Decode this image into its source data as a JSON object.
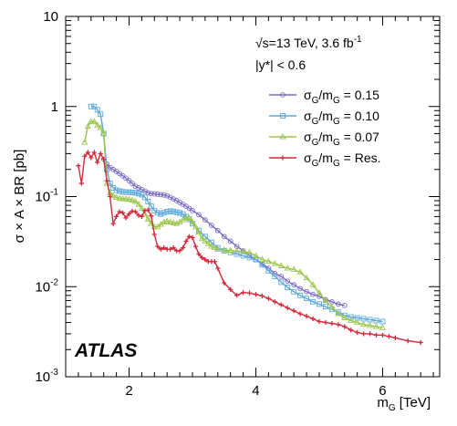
{
  "chart_data": {
    "type": "line",
    "xlabel": "m",
    "xlabel_sub": "G",
    "xlabel_unit": " [TeV]",
    "ylabel": "σ × A × BR [pb]",
    "xlim": [
      1.0,
      6.9
    ],
    "ylim": [
      0.001,
      10
    ],
    "yscale": "log",
    "x_ticks": [
      2,
      4,
      6
    ],
    "x_tick_labels": [
      "2",
      "4",
      "6"
    ],
    "y_ticks": [
      0.001,
      0.01,
      0.1,
      1,
      10
    ],
    "y_tick_labels": [
      {
        "base": "10",
        "exp": "-3"
      },
      {
        "base": "10",
        "exp": "-2"
      },
      {
        "base": "10",
        "exp": "-1"
      },
      {
        "base": "1",
        "exp": ""
      },
      {
        "base": "10",
        "exp": ""
      }
    ],
    "grid": false,
    "legend_position": "top-right",
    "info": {
      "line1_prefix": "√s=13 TeV, 3.6 fb",
      "line1_sup": "-1",
      "line2": "|y*| < 0.6"
    },
    "brand": "ATLAS",
    "series": [
      {
        "name": "σG/mG = 0.15",
        "legend_main": "σ",
        "legend_sub1": "G",
        "legend_mid": "/m",
        "legend_sub2": "G",
        "legend_tail": " = 0.15",
        "color": "#7b68c4",
        "marker": "circle",
        "x": [
          1.6,
          1.65,
          1.7,
          1.75,
          1.8,
          1.85,
          1.9,
          1.95,
          2.0,
          2.05,
          2.1,
          2.15,
          2.2,
          2.25,
          2.3,
          2.35,
          2.4,
          2.45,
          2.5,
          2.55,
          2.6,
          2.65,
          2.7,
          2.75,
          2.8,
          2.85,
          2.9,
          2.95,
          3.0,
          3.1,
          3.2,
          3.3,
          3.4,
          3.5,
          3.6,
          3.7,
          3.8,
          3.9,
          4.0,
          4.1,
          4.2,
          4.3,
          4.4,
          4.5,
          4.6,
          4.7,
          4.8,
          4.9,
          5.0,
          5.1,
          5.2,
          5.3,
          5.4
        ],
        "values": [
          0.26,
          0.23,
          0.21,
          0.2,
          0.19,
          0.18,
          0.17,
          0.16,
          0.15,
          0.14,
          0.13,
          0.125,
          0.12,
          0.115,
          0.11,
          0.108,
          0.107,
          0.106,
          0.105,
          0.104,
          0.102,
          0.098,
          0.094,
          0.09,
          0.086,
          0.082,
          0.078,
          0.074,
          0.07,
          0.063,
          0.055,
          0.048,
          0.042,
          0.036,
          0.032,
          0.028,
          0.025,
          0.022,
          0.02,
          0.018,
          0.016,
          0.014,
          0.013,
          0.0115,
          0.0105,
          0.0095,
          0.0088,
          0.0082,
          0.0078,
          0.0072,
          0.0068,
          0.0064,
          0.0062
        ]
      },
      {
        "name": "σG/mG = 0.10",
        "legend_main": "σ",
        "legend_sub1": "G",
        "legend_mid": "/m",
        "legend_sub2": "G",
        "legend_tail": " = 0.10",
        "color": "#5aa7d9",
        "marker": "square",
        "x": [
          1.4,
          1.45,
          1.5,
          1.55,
          1.6,
          1.65,
          1.7,
          1.75,
          1.8,
          1.85,
          1.9,
          1.95,
          2.0,
          2.05,
          2.1,
          2.15,
          2.2,
          2.25,
          2.3,
          2.35,
          2.4,
          2.45,
          2.5,
          2.55,
          2.6,
          2.65,
          2.7,
          2.75,
          2.8,
          2.85,
          2.9,
          2.95,
          3.0,
          3.1,
          3.2,
          3.3,
          3.4,
          3.5,
          3.6,
          3.7,
          3.8,
          3.9,
          4.0,
          4.1,
          4.2,
          4.3,
          4.4,
          4.5,
          4.6,
          4.7,
          4.8,
          4.9,
          5.0,
          5.1,
          5.2,
          5.3,
          5.4,
          5.5,
          5.6,
          5.7,
          5.8,
          5.9,
          6.0
        ],
        "values": [
          1.0,
          1.0,
          0.92,
          0.82,
          0.5,
          0.2,
          0.14,
          0.125,
          0.118,
          0.115,
          0.113,
          0.112,
          0.112,
          0.111,
          0.11,
          0.108,
          0.105,
          0.098,
          0.088,
          0.078,
          0.07,
          0.066,
          0.064,
          0.066,
          0.068,
          0.069,
          0.068,
          0.067,
          0.066,
          0.064,
          0.06,
          0.056,
          0.05,
          0.042,
          0.036,
          0.031,
          0.027,
          0.025,
          0.024,
          0.023,
          0.022,
          0.021,
          0.02,
          0.0175,
          0.015,
          0.013,
          0.0112,
          0.0098,
          0.0088,
          0.008,
          0.0074,
          0.0068,
          0.0064,
          0.006,
          0.0056,
          0.0052,
          0.0048,
          0.0046,
          0.0045,
          0.0044,
          0.0043,
          0.0042,
          0.0041
        ]
      },
      {
        "name": "σG/mG = 0.07",
        "legend_main": "σ",
        "legend_sub1": "G",
        "legend_mid": "/m",
        "legend_sub2": "G",
        "legend_tail": " = 0.07",
        "color": "#9ac64a",
        "marker": "triangle",
        "x": [
          1.3,
          1.35,
          1.4,
          1.45,
          1.5,
          1.55,
          1.6,
          1.65,
          1.7,
          1.75,
          1.8,
          1.85,
          1.9,
          1.95,
          2.0,
          2.05,
          2.1,
          2.15,
          2.2,
          2.25,
          2.3,
          2.35,
          2.4,
          2.45,
          2.5,
          2.55,
          2.6,
          2.65,
          2.7,
          2.75,
          2.8,
          2.85,
          2.9,
          2.95,
          3.0,
          3.05,
          3.1,
          3.15,
          3.2,
          3.25,
          3.3,
          3.35,
          3.4,
          3.5,
          3.6,
          3.7,
          3.8,
          3.9,
          4.0,
          4.1,
          4.2,
          4.3,
          4.4,
          4.5,
          4.6,
          4.7,
          4.8,
          4.9,
          5.0,
          5.1,
          5.2,
          5.3,
          5.4,
          5.5,
          5.6,
          5.7,
          5.8,
          5.9,
          6.0
        ],
        "values": [
          0.4,
          0.6,
          0.68,
          0.68,
          0.62,
          0.58,
          0.5,
          0.14,
          0.11,
          0.102,
          0.098,
          0.095,
          0.094,
          0.094,
          0.093,
          0.091,
          0.088,
          0.082,
          0.074,
          0.064,
          0.056,
          0.05,
          0.046,
          0.046,
          0.049,
          0.052,
          0.053,
          0.052,
          0.051,
          0.05,
          0.052,
          0.055,
          0.058,
          0.057,
          0.052,
          0.046,
          0.04,
          0.034,
          0.032,
          0.03,
          0.028,
          0.027,
          0.026,
          0.0255,
          0.0252,
          0.0248,
          0.0245,
          0.024,
          0.022,
          0.02,
          0.019,
          0.018,
          0.017,
          0.016,
          0.0155,
          0.0145,
          0.0125,
          0.0105,
          0.0085,
          0.007,
          0.0059,
          0.005,
          0.0045,
          0.0042,
          0.004,
          0.0038,
          0.0037,
          0.0036,
          0.0035
        ]
      },
      {
        "name": "σG/mG = Res.",
        "legend_main": "σ",
        "legend_sub1": "G",
        "legend_mid": "/m",
        "legend_sub2": "G",
        "legend_tail": " = Res.",
        "color": "#d42a3c",
        "marker": "cross",
        "x": [
          1.2,
          1.25,
          1.3,
          1.35,
          1.4,
          1.45,
          1.5,
          1.55,
          1.6,
          1.65,
          1.7,
          1.75,
          1.8,
          1.85,
          1.9,
          1.95,
          2.0,
          2.05,
          2.1,
          2.15,
          2.2,
          2.25,
          2.3,
          2.35,
          2.4,
          2.45,
          2.5,
          2.55,
          2.6,
          2.65,
          2.7,
          2.75,
          2.8,
          2.85,
          2.9,
          2.95,
          3.0,
          3.05,
          3.1,
          3.15,
          3.2,
          3.25,
          3.3,
          3.35,
          3.4,
          3.5,
          3.6,
          3.7,
          3.8,
          3.9,
          4.0,
          4.1,
          4.2,
          4.3,
          4.4,
          4.5,
          4.6,
          4.7,
          4.8,
          4.9,
          5.0,
          5.1,
          5.2,
          5.3,
          5.4,
          5.5,
          5.6,
          5.7,
          5.8,
          5.9,
          6.0,
          6.1,
          6.2,
          6.4,
          6.6
        ],
        "values": [
          0.22,
          0.14,
          0.28,
          0.31,
          0.27,
          0.31,
          0.24,
          0.3,
          0.26,
          0.15,
          0.1,
          0.05,
          0.06,
          0.068,
          0.066,
          0.058,
          0.064,
          0.069,
          0.068,
          0.062,
          0.06,
          0.07,
          0.071,
          0.061,
          0.038,
          0.028,
          0.026,
          0.027,
          0.026,
          0.026,
          0.027,
          0.025,
          0.025,
          0.027,
          0.032,
          0.036,
          0.035,
          0.028,
          0.023,
          0.021,
          0.02,
          0.019,
          0.019,
          0.019,
          0.016,
          0.011,
          0.0093,
          0.008,
          0.0086,
          0.0085,
          0.0082,
          0.0079,
          0.0074,
          0.0068,
          0.0063,
          0.0058,
          0.0054,
          0.005,
          0.0047,
          0.0044,
          0.0041,
          0.004,
          0.0039,
          0.0038,
          0.0036,
          0.0033,
          0.0031,
          0.003,
          0.003,
          0.0029,
          0.0029,
          0.0028,
          0.0027,
          0.0025,
          0.0024
        ]
      }
    ]
  }
}
